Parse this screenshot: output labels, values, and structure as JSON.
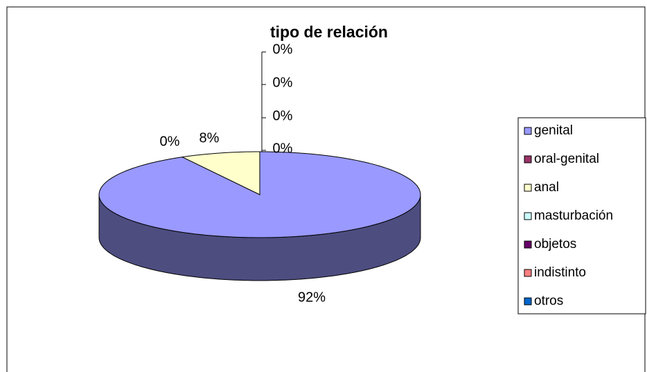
{
  "chart_data": {
    "type": "pie3d",
    "title": "tipo de relación",
    "categories": [
      "genital",
      "oral-genital",
      "anal",
      "masturbación",
      "objetos",
      "indistinto",
      "otros"
    ],
    "values": [
      92,
      0,
      8,
      0,
      0,
      0,
      0
    ],
    "value_labels": [
      "92%",
      "0%",
      "8%",
      "0%",
      "0%",
      "0%",
      "0%"
    ],
    "colors": [
      "#9999ff",
      "#993366",
      "#ffffcc",
      "#ccffff",
      "#660066",
      "#ff8080",
      "#0066cc"
    ],
    "legend": "right"
  }
}
